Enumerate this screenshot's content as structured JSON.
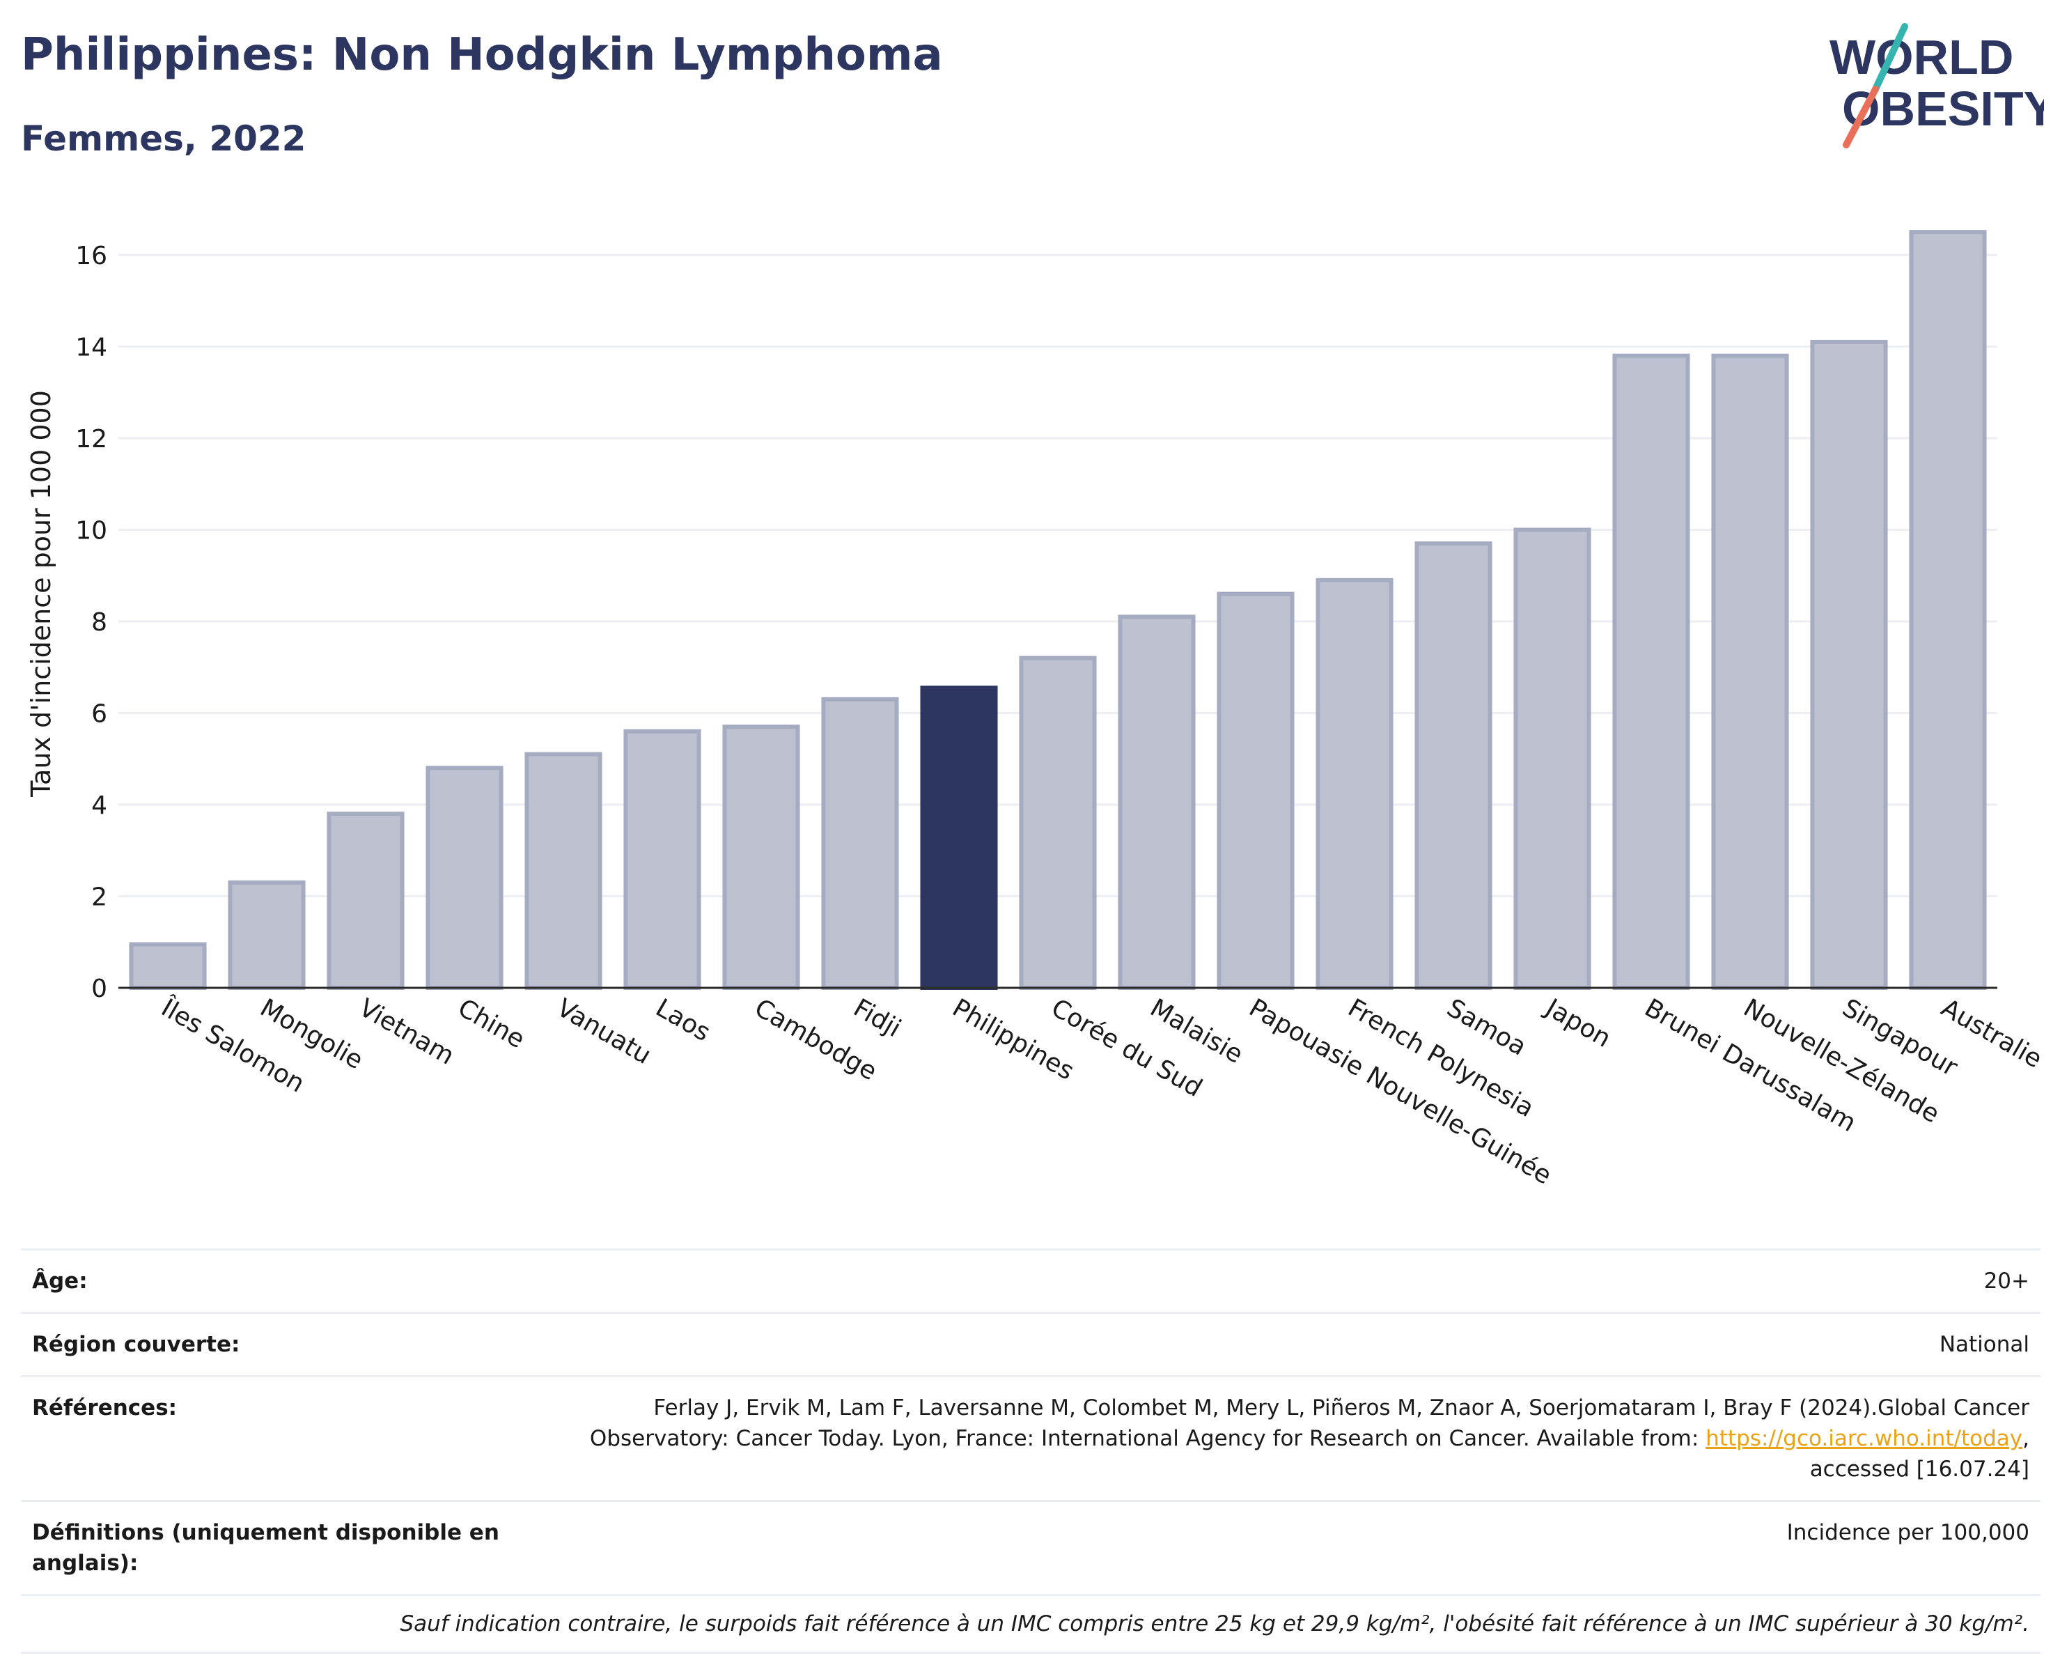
{
  "header": {
    "title": "Philippines: Non Hodgkin Lymphoma",
    "subtitle": "Femmes, 2022",
    "logo_line1": "WORLD",
    "logo_line2": "OBESITY"
  },
  "colors": {
    "bar": "#bec2d0",
    "bar_stroke": "#a5abc0",
    "highlight": "#2c3660",
    "title": "#2c3660",
    "grid": "#eceef3",
    "logo_teal": "#35b4b0",
    "logo_coral": "#e8705a"
  },
  "chart_data": {
    "type": "bar",
    "title": "Philippines: Non Hodgkin Lymphoma",
    "subtitle": "Femmes, 2022",
    "xlabel": "",
    "ylabel": "Taux d'incidence pour 100 000",
    "ylim": [
      0,
      17
    ],
    "yticks": [
      0,
      2,
      4,
      6,
      8,
      10,
      12,
      14,
      16
    ],
    "grid": true,
    "highlight": "Philippines",
    "categories": [
      "Îles Salomon",
      "Mongolie",
      "Vietnam",
      "Chine",
      "Vanuatu",
      "Laos",
      "Cambodge",
      "Fidji",
      "Philippines",
      "Corée du Sud",
      "Malaisie",
      "Papouasie Nouvelle-Guinée",
      "French Polynesia",
      "Samoa",
      "Japon",
      "Brunei Darussalam",
      "Nouvelle-Zélande",
      "Singapour",
      "Australie"
    ],
    "values": [
      0.95,
      2.3,
      3.8,
      4.8,
      5.1,
      5.6,
      5.7,
      6.3,
      6.55,
      7.2,
      8.1,
      8.6,
      8.9,
      9.7,
      10.0,
      13.8,
      13.8,
      14.1,
      16.5
    ]
  },
  "info": {
    "age_label": "Âge:",
    "age_value": "20+",
    "region_label": "Région couverte:",
    "region_value": "National",
    "refs_label": "Références:",
    "refs_text1": "Ferlay J, Ervik M, Lam F, Laversanne M, Colombet M, Mery L, Piñeros M, Znaor A, Soerjomataram I, Bray F (2024).Global Cancer",
    "refs_text2": "Observatory: Cancer Today. Lyon, France: International Agency for Research on Cancer. Available from: ",
    "refs_link": "https://gco.iarc.who.int/today",
    "refs_text3": ",",
    "refs_text4": "accessed [16.07.24]",
    "defs_label": "Définitions (uniquement disponible en anglais):",
    "defs_value": "Incidence per 100,000",
    "note": "Sauf indication contraire, le surpoids fait référence à un IMC compris entre 25 kg et 29,9 kg/m², l'obésité fait référence à un IMC supérieur à 30 kg/m²."
  }
}
